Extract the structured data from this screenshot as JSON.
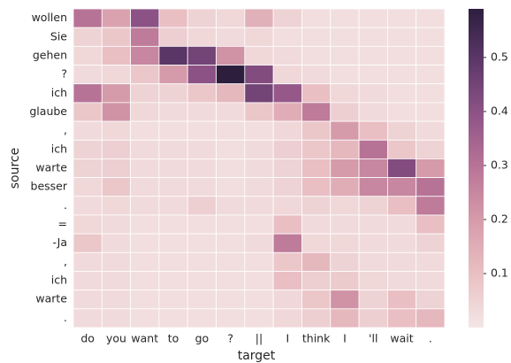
{
  "chart_data": {
    "type": "heatmap",
    "x_label": "target",
    "y_label": "source",
    "x_categories": [
      "do",
      "you",
      "want",
      "to",
      "go",
      "?",
      "||",
      "I",
      "think",
      "I",
      "'ll",
      "wait",
      "."
    ],
    "y_categories": [
      "wollen",
      "Sie",
      "gehen",
      "?",
      "ich",
      "glaube",
      ",",
      "ich",
      "warte",
      "besser",
      ".",
      "=",
      "-Ja",
      ",",
      "ich",
      "warte",
      "."
    ],
    "values": [
      [
        0.3,
        0.18,
        0.4,
        0.1,
        0.05,
        0.04,
        0.14,
        0.05,
        0.02,
        0.02,
        0.02,
        0.02,
        0.02
      ],
      [
        0.05,
        0.08,
        0.28,
        0.06,
        0.04,
        0.03,
        0.04,
        0.02,
        0.02,
        0.02,
        0.02,
        0.02,
        0.02
      ],
      [
        0.04,
        0.1,
        0.25,
        0.5,
        0.45,
        0.22,
        0.04,
        0.03,
        0.02,
        0.02,
        0.02,
        0.02,
        0.02
      ],
      [
        0.03,
        0.04,
        0.08,
        0.2,
        0.4,
        0.59,
        0.42,
        0.04,
        0.03,
        0.02,
        0.02,
        0.02,
        0.02
      ],
      [
        0.3,
        0.2,
        0.05,
        0.05,
        0.08,
        0.12,
        0.45,
        0.38,
        0.1,
        0.04,
        0.03,
        0.02,
        0.02
      ],
      [
        0.08,
        0.22,
        0.04,
        0.03,
        0.03,
        0.03,
        0.08,
        0.15,
        0.28,
        0.06,
        0.03,
        0.02,
        0.02
      ],
      [
        0.03,
        0.04,
        0.02,
        0.02,
        0.02,
        0.02,
        0.02,
        0.04,
        0.08,
        0.2,
        0.1,
        0.05,
        0.03
      ],
      [
        0.05,
        0.06,
        0.03,
        0.03,
        0.03,
        0.02,
        0.03,
        0.06,
        0.08,
        0.12,
        0.3,
        0.08,
        0.05
      ],
      [
        0.05,
        0.06,
        0.03,
        0.03,
        0.03,
        0.02,
        0.03,
        0.05,
        0.1,
        0.2,
        0.25,
        0.42,
        0.2
      ],
      [
        0.04,
        0.08,
        0.03,
        0.03,
        0.03,
        0.02,
        0.03,
        0.05,
        0.1,
        0.15,
        0.25,
        0.25,
        0.3
      ],
      [
        0.03,
        0.04,
        0.03,
        0.03,
        0.06,
        0.03,
        0.03,
        0.04,
        0.05,
        0.04,
        0.05,
        0.1,
        0.28
      ],
      [
        0.04,
        0.03,
        0.02,
        0.02,
        0.02,
        0.02,
        0.02,
        0.1,
        0.03,
        0.03,
        0.03,
        0.03,
        0.1
      ],
      [
        0.08,
        0.03,
        0.02,
        0.02,
        0.02,
        0.02,
        0.03,
        0.28,
        0.04,
        0.04,
        0.03,
        0.03,
        0.05
      ],
      [
        0.03,
        0.03,
        0.02,
        0.02,
        0.02,
        0.02,
        0.02,
        0.08,
        0.12,
        0.05,
        0.03,
        0.03,
        0.03
      ],
      [
        0.03,
        0.03,
        0.02,
        0.02,
        0.02,
        0.02,
        0.02,
        0.1,
        0.06,
        0.07,
        0.04,
        0.03,
        0.03
      ],
      [
        0.03,
        0.03,
        0.02,
        0.02,
        0.02,
        0.02,
        0.02,
        0.04,
        0.08,
        0.22,
        0.05,
        0.1,
        0.05
      ],
      [
        0.03,
        0.03,
        0.02,
        0.02,
        0.02,
        0.02,
        0.02,
        0.04,
        0.06,
        0.12,
        0.06,
        0.1,
        0.12
      ]
    ],
    "colorbar_lim": [
      0,
      0.59
    ],
    "colorbar_ticks": [
      0.1,
      0.2,
      0.3,
      0.4,
      0.5
    ],
    "colors": [
      "#f4e6e6",
      "#e9c0c3",
      "#d79cab",
      "#b97597",
      "#8f5487",
      "#5e386a",
      "#2d1e3e"
    ]
  }
}
